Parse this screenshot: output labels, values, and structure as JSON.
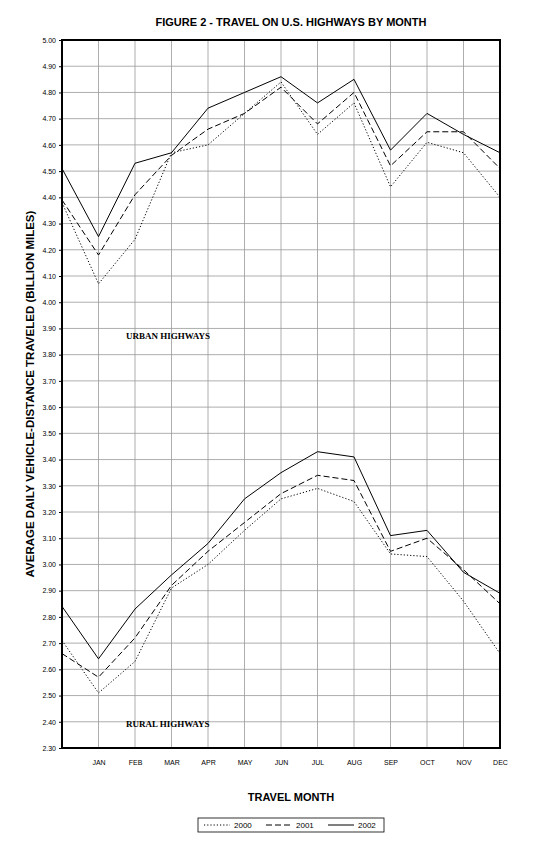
{
  "chart_data": {
    "type": "line",
    "title": "FIGURE 2 - TRAVEL ON U.S. HIGHWAYS BY MONTH",
    "x_label": "TRAVEL MONTH",
    "y_label": "AVERAGE DAILY VEHICLE-DISTANCE TRAVELED (BILLION MILES)",
    "categories": [
      null,
      "JAN",
      "FEB",
      "MAR",
      "APR",
      "MAY",
      "JUN",
      "JUL",
      "AUG",
      "SEP",
      "OCT",
      "NOV",
      "DEC"
    ],
    "ylim": [
      2.3,
      5.0
    ],
    "yticks": [
      {
        "value": 2.3,
        "label": "2.30"
      },
      {
        "value": 2.4,
        "label": "2.40"
      },
      {
        "value": 2.5,
        "label": "2.50"
      },
      {
        "value": 2.6,
        "label": "2.60"
      },
      {
        "value": 2.7,
        "label": "2.70"
      },
      {
        "value": 2.8,
        "label": "2.80"
      },
      {
        "value": 2.9,
        "label": "2.90"
      },
      {
        "value": 3.0,
        "label": "3.00"
      },
      {
        "value": 3.1,
        "label": "3.10"
      },
      {
        "value": 3.2,
        "label": "3.20"
      },
      {
        "value": 3.3,
        "label": "3.30"
      },
      {
        "value": 3.4,
        "label": "3.40"
      },
      {
        "value": 3.5,
        "label": "3.50"
      },
      {
        "value": 3.6,
        "label": "3.60"
      },
      {
        "value": 3.7,
        "label": "3.70"
      },
      {
        "value": 3.8,
        "label": "3.80"
      },
      {
        "value": 3.9,
        "label": "3.90"
      },
      {
        "value": 4.0,
        "label": "4.00"
      },
      {
        "value": 4.1,
        "label": "4.10"
      },
      {
        "value": 4.2,
        "label": "4.20"
      },
      {
        "value": 4.3,
        "label": "4.30"
      },
      {
        "value": 4.4,
        "label": "4.40"
      },
      {
        "value": 4.5,
        "label": "4.50"
      },
      {
        "value": 4.6,
        "label": "4.60"
      },
      {
        "value": 4.7,
        "label": "4.70"
      },
      {
        "value": 4.8,
        "label": "4.80"
      },
      {
        "value": 4.9,
        "label": "4.90"
      },
      {
        "value": 5.0,
        "label": "5.00"
      }
    ],
    "grid": true,
    "legend": "bottom",
    "annotations": [
      {
        "text": "URBAN HIGHWAYS",
        "y": 3.86
      },
      {
        "text": "RURAL HIGHWAYS",
        "y": 2.38
      }
    ],
    "series": [
      {
        "name": "2000",
        "color": "#000000",
        "line_style": "dotted",
        "values": [
          4.38,
          4.07,
          4.24,
          4.57,
          4.6,
          4.72,
          4.84,
          4.64,
          4.76,
          4.44,
          4.61,
          4.57,
          4.4
        ]
      },
      {
        "name": "2001",
        "color": "#000000",
        "line_style": "dashed",
        "values": [
          4.39,
          4.18,
          4.41,
          4.56,
          4.66,
          4.72,
          4.82,
          4.68,
          4.8,
          4.52,
          4.65,
          4.65,
          4.51
        ]
      },
      {
        "name": "2002",
        "color": "#000000",
        "line_style": "solid",
        "values": [
          4.51,
          4.25,
          4.53,
          4.57,
          4.74,
          4.8,
          4.86,
          4.76,
          4.85,
          4.58,
          4.72,
          4.64,
          4.57
        ]
      },
      {
        "name": "2000",
        "color": "#000000",
        "line_style": "dotted",
        "values": [
          2.71,
          2.51,
          2.63,
          2.91,
          3.0,
          3.13,
          3.25,
          3.29,
          3.24,
          3.04,
          3.03,
          2.86,
          2.66
        ]
      },
      {
        "name": "2001",
        "color": "#000000",
        "line_style": "dashed",
        "values": [
          2.66,
          2.57,
          2.72,
          2.92,
          3.05,
          3.16,
          3.27,
          3.34,
          3.32,
          3.05,
          3.1,
          2.98,
          2.85
        ]
      },
      {
        "name": "2002",
        "color": "#000000",
        "line_style": "solid",
        "values": [
          2.84,
          2.64,
          2.83,
          2.96,
          3.08,
          3.25,
          3.35,
          3.43,
          3.41,
          3.11,
          3.13,
          2.97,
          2.89
        ]
      }
    ]
  }
}
